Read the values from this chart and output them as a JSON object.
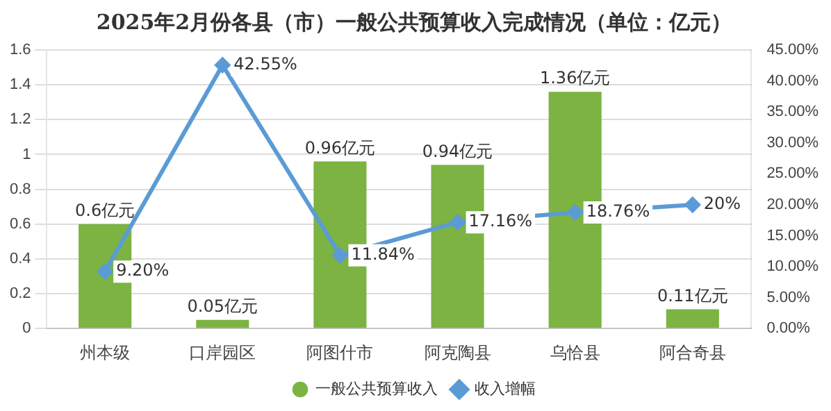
{
  "chart_data": {
    "type": "bar",
    "title": "2025年2月份各县（市）一般公共预算收入完成情况（单位：亿元）",
    "categories": [
      "州本级",
      "口岸园区",
      "阿图什市",
      "阿克陶县",
      "乌恰县",
      "阿合奇县"
    ],
    "series": [
      {
        "name": "一般公共预算收入",
        "color": "#7cb342",
        "values": [
          0.6,
          0.05,
          0.96,
          0.94,
          1.36,
          0.11
        ],
        "value_labels": [
          "0.6亿元",
          "0.05亿元",
          "0.96亿元",
          "0.94亿元",
          "1.36亿元",
          "0.11亿元"
        ]
      },
      {
        "name": "收入增幅",
        "type": "line",
        "axis": "y2",
        "color": "#5b9bd5",
        "values": [
          9.2,
          42.55,
          11.84,
          17.16,
          18.76,
          20
        ],
        "value_labels": [
          "9.20%",
          "42.55%",
          "11.84%",
          "17.16%",
          "18.76%",
          "20%"
        ]
      }
    ],
    "ylim": [
      0,
      1.6
    ],
    "yticks": [
      0,
      0.2,
      0.4,
      0.6,
      0.8,
      1,
      1.2,
      1.4,
      1.6
    ],
    "y2lim": [
      0,
      45
    ],
    "y2ticks": [
      {
        "value": 0,
        "label": "0.00%"
      },
      {
        "value": 5,
        "label": "5.00%"
      },
      {
        "value": 10,
        "label": "10.00%"
      },
      {
        "value": 15,
        "label": "15.00%"
      },
      {
        "value": 20,
        "label": "20.00%"
      },
      {
        "value": 25,
        "label": "25.00%"
      },
      {
        "value": 30,
        "label": "30.00%"
      },
      {
        "value": 35,
        "label": "35.00%"
      },
      {
        "value": 40,
        "label": "40.00%"
      },
      {
        "value": 45,
        "label": "45.00%"
      }
    ],
    "grid": "y",
    "legend": "bottom",
    "marker": "diamond",
    "line_style": "solid"
  }
}
